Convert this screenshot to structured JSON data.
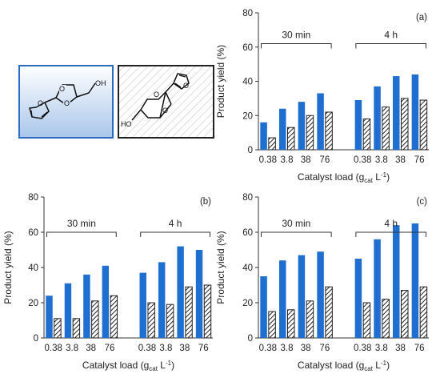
{
  "chart_data": [
    {
      "type": "bar",
      "panel_label": "(a)",
      "ylabel": "Product yield (%)",
      "xlabel": {
        "main": "Catalyst load (g",
        "sub": "cat",
        "tail": " L",
        "sup": "-1",
        "close": ")"
      },
      "ylim": [
        0,
        80
      ],
      "yticks": [
        "0",
        "20",
        "40",
        "60",
        "80"
      ],
      "categories": [
        "0.38",
        "3.8",
        "38",
        "76",
        "0.38",
        "3.8",
        "38",
        "76"
      ],
      "groups": [
        {
          "label": "30 min",
          "range": [
            0,
            3
          ]
        },
        {
          "label": "4 h",
          "range": [
            4,
            7
          ]
        }
      ],
      "series": [
        {
          "values": [
            16,
            24,
            28,
            33,
            29,
            37,
            43,
            44
          ],
          "color": "#1f6fd1"
        },
        {
          "values": [
            7,
            13,
            20,
            22,
            18,
            25,
            30,
            29
          ],
          "pattern": "diagonal-hatch"
        }
      ]
    },
    {
      "type": "bar",
      "panel_label": "(b)",
      "ylabel": "Product yield (%)",
      "xlabel": {
        "main": "Catalyst load (g",
        "sub": "cat",
        "tail": " L",
        "sup": "-1",
        "close": ")"
      },
      "ylim": [
        0,
        80
      ],
      "yticks": [
        "0",
        "20",
        "40",
        "60",
        "80"
      ],
      "categories": [
        "0.38",
        "3.8",
        "38",
        "76",
        "0.38",
        "3.8",
        "38",
        "76"
      ],
      "groups": [
        {
          "label": "30 min",
          "range": [
            0,
            3
          ]
        },
        {
          "label": "4 h",
          "range": [
            4,
            7
          ]
        }
      ],
      "series": [
        {
          "values": [
            24,
            31,
            36,
            41,
            37,
            43,
            52,
            50
          ],
          "color": "#1f6fd1"
        },
        {
          "values": [
            11,
            11,
            21,
            24,
            20,
            19,
            29,
            30
          ],
          "pattern": "diagonal-hatch"
        }
      ]
    },
    {
      "type": "bar",
      "panel_label": "(c)",
      "ylabel": "Product yield (%)",
      "xlabel": {
        "main": "Catalyst load (g",
        "sub": "cat",
        "tail": " L",
        "sup": "-1",
        "close": ")"
      },
      "ylim": [
        0,
        80
      ],
      "yticks": [
        "0",
        "20",
        "40",
        "60",
        "80"
      ],
      "categories": [
        "0.38",
        "3.8",
        "38",
        "76",
        "0.38",
        "3.8",
        "38",
        "76"
      ],
      "groups": [
        {
          "label": "30 min",
          "range": [
            0,
            3
          ]
        },
        {
          "label": "4 h",
          "range": [
            4,
            7
          ]
        }
      ],
      "series": [
        {
          "values": [
            35,
            44,
            47,
            49,
            45,
            56,
            64,
            65
          ],
          "color": "#1f6fd1"
        },
        {
          "values": [
            15,
            16,
            21,
            29,
            20,
            22,
            27,
            29
          ],
          "pattern": "diagonal-hatch"
        }
      ]
    }
  ],
  "structures": [
    {
      "hydroxyl_label": "OH",
      "style": "blue-gradient-box"
    },
    {
      "hydroxyl_label": "HO",
      "style": "hatched-box"
    }
  ]
}
